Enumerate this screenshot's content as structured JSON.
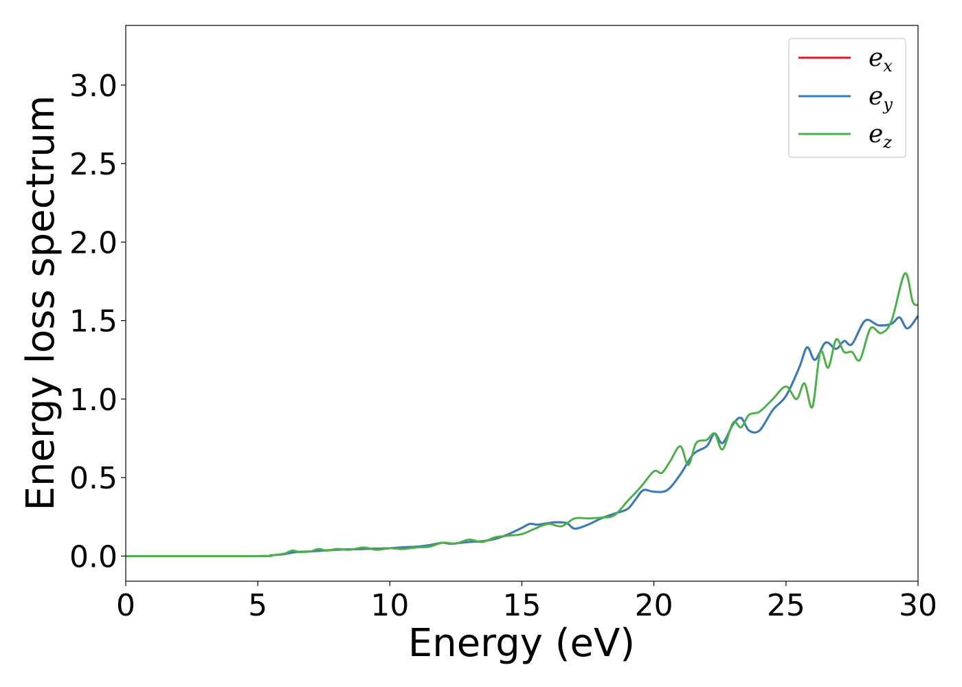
{
  "chart_data": {
    "type": "line",
    "title": "",
    "xlabel": "Energy (eV)",
    "ylabel": "Energy loss spectrum",
    "xlim": [
      0,
      30
    ],
    "ylim": [
      -0.16,
      3.38
    ],
    "xticks": [
      "0",
      "5",
      "10",
      "15",
      "20",
      "25",
      "30"
    ],
    "yticks": [
      "0.0",
      "0.5",
      "1.0",
      "1.5",
      "2.0",
      "2.5",
      "3.0"
    ],
    "grid": false,
    "legend_position": "top-right",
    "legend": [
      {
        "base": "e",
        "sub": "x"
      },
      {
        "base": "e",
        "sub": "y"
      },
      {
        "base": "e",
        "sub": "z"
      }
    ],
    "colors": {
      "e_x": "#e41a1c",
      "e_y": "#377eb8",
      "e_z": "#4daf4a"
    },
    "series": [
      {
        "key": "e_x",
        "x": [
          0,
          5,
          5.5,
          6,
          6.3,
          6.5,
          7,
          7.5,
          8,
          8.5,
          9,
          9.5,
          10,
          10.5,
          11,
          11.5,
          12,
          12.3,
          12.7,
          13,
          13.5,
          14,
          14.5,
          15,
          15.3,
          15.6,
          16,
          16.3,
          16.7,
          17,
          17.5,
          18,
          18.5,
          19,
          19.3,
          19.6,
          20,
          20.5,
          21,
          21.5,
          22,
          22.3,
          22.6,
          23,
          23.3,
          23.6,
          24,
          24.5,
          25,
          25.5,
          25.8,
          26.1,
          26.5,
          26.9,
          27.2,
          27.5,
          28,
          28.5,
          29,
          29.3,
          29.6,
          30
        ],
        "y": [
          0,
          0,
          0.005,
          0.012,
          0.022,
          0.026,
          0.03,
          0.035,
          0.04,
          0.043,
          0.045,
          0.048,
          0.05,
          0.056,
          0.06,
          0.07,
          0.085,
          0.078,
          0.085,
          0.09,
          0.095,
          0.11,
          0.14,
          0.18,
          0.205,
          0.2,
          0.21,
          0.215,
          0.21,
          0.175,
          0.2,
          0.24,
          0.27,
          0.3,
          0.36,
          0.42,
          0.41,
          0.42,
          0.52,
          0.65,
          0.7,
          0.78,
          0.72,
          0.84,
          0.88,
          0.8,
          0.8,
          0.93,
          1.02,
          1.2,
          1.33,
          1.25,
          1.36,
          1.32,
          1.37,
          1.35,
          1.5,
          1.47,
          1.48,
          1.52,
          1.45,
          1.53
        ]
      },
      {
        "key": "e_y",
        "x": [
          0,
          5,
          5.5,
          6,
          6.3,
          6.5,
          7,
          7.5,
          8,
          8.5,
          9,
          9.5,
          10,
          10.5,
          11,
          11.5,
          12,
          12.3,
          12.7,
          13,
          13.5,
          14,
          14.5,
          15,
          15.3,
          15.6,
          16,
          16.3,
          16.7,
          17,
          17.5,
          18,
          18.5,
          19,
          19.3,
          19.6,
          20,
          20.5,
          21,
          21.5,
          22,
          22.3,
          22.6,
          23,
          23.3,
          23.6,
          24,
          24.5,
          25,
          25.5,
          25.8,
          26.1,
          26.5,
          26.9,
          27.2,
          27.5,
          28,
          28.5,
          29,
          29.3,
          29.6,
          30
        ],
        "y": [
          0,
          0,
          0.005,
          0.012,
          0.022,
          0.026,
          0.03,
          0.035,
          0.04,
          0.043,
          0.045,
          0.048,
          0.05,
          0.056,
          0.06,
          0.07,
          0.085,
          0.078,
          0.085,
          0.09,
          0.095,
          0.11,
          0.14,
          0.18,
          0.205,
          0.2,
          0.21,
          0.215,
          0.21,
          0.175,
          0.2,
          0.24,
          0.27,
          0.3,
          0.36,
          0.42,
          0.41,
          0.42,
          0.52,
          0.65,
          0.7,
          0.78,
          0.72,
          0.84,
          0.88,
          0.8,
          0.8,
          0.93,
          1.02,
          1.2,
          1.33,
          1.25,
          1.36,
          1.32,
          1.37,
          1.35,
          1.5,
          1.47,
          1.48,
          1.52,
          1.45,
          1.53
        ]
      },
      {
        "key": "e_z",
        "x": [
          0,
          5,
          5.5,
          6,
          6.3,
          6.6,
          7,
          7.3,
          7.6,
          8,
          8.5,
          9,
          9.5,
          10,
          10.5,
          11,
          11.5,
          12,
          12.5,
          13,
          13.5,
          14,
          14.5,
          15,
          15.5,
          16,
          16.5,
          17,
          17.5,
          18,
          18.5,
          19,
          19.5,
          20,
          20.3,
          20.6,
          21,
          21.3,
          21.6,
          22,
          22.3,
          22.6,
          23,
          23.3,
          23.6,
          24,
          24.5,
          25,
          25.4,
          25.7,
          26,
          26.3,
          26.6,
          26.9,
          27.2,
          27.5,
          27.8,
          28.2,
          28.6,
          29,
          29.5,
          29.8,
          30
        ],
        "y": [
          0,
          0,
          0.005,
          0.015,
          0.035,
          0.025,
          0.03,
          0.045,
          0.035,
          0.045,
          0.04,
          0.055,
          0.04,
          0.05,
          0.045,
          0.055,
          0.06,
          0.085,
          0.08,
          0.105,
          0.09,
          0.12,
          0.13,
          0.14,
          0.175,
          0.205,
          0.19,
          0.24,
          0.24,
          0.245,
          0.26,
          0.35,
          0.44,
          0.54,
          0.53,
          0.6,
          0.7,
          0.58,
          0.72,
          0.74,
          0.78,
          0.68,
          0.85,
          0.82,
          0.9,
          0.92,
          1.0,
          1.08,
          1.0,
          1.1,
          0.95,
          1.3,
          1.2,
          1.38,
          1.3,
          1.3,
          1.25,
          1.45,
          1.42,
          1.5,
          1.8,
          1.62,
          1.6
        ]
      }
    ]
  }
}
